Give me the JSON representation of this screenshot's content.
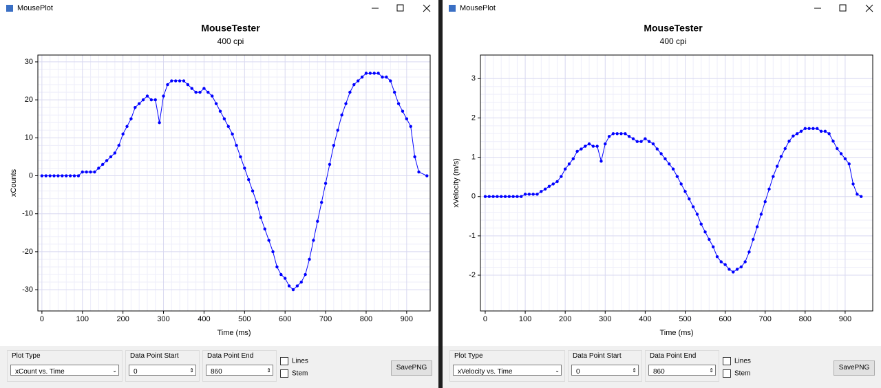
{
  "windows": [
    {
      "title": "MousePlot",
      "controls": {
        "plot_type_label": "Plot Type",
        "plot_type_value": "xCount vs. Time",
        "start_label": "Data Point Start",
        "start_value": "0",
        "end_label": "Data Point End",
        "end_value": "860",
        "lines_label": "Lines",
        "stem_label": "Stem",
        "button": "SavePNG"
      }
    },
    {
      "title": "MousePlot",
      "controls": {
        "plot_type_label": "Plot Type",
        "plot_type_value": "xVelocity vs. Time",
        "start_label": "Data Point Start",
        "start_value": "0",
        "end_label": "Data Point End",
        "end_value": "860",
        "lines_label": "Lines",
        "stem_label": "Stem",
        "button": "SavePNG"
      }
    }
  ],
  "chart_data": [
    {
      "type": "scatter",
      "title": "MouseTester",
      "subtitle": "400 cpi",
      "x_label": "Time (ms)",
      "y_label": "xCounts",
      "x": [
        0,
        10,
        20,
        30,
        40,
        50,
        60,
        70,
        80,
        90,
        100,
        110,
        120,
        130,
        140,
        150,
        160,
        170,
        180,
        190,
        200,
        210,
        220,
        230,
        240,
        250,
        260,
        270,
        280,
        290,
        300,
        310,
        320,
        330,
        340,
        350,
        360,
        370,
        380,
        390,
        400,
        410,
        420,
        430,
        440,
        450,
        460,
        470,
        480,
        490,
        500,
        510,
        520,
        530,
        540,
        550,
        560,
        570,
        580,
        590,
        600,
        610,
        620,
        630,
        640,
        650,
        660,
        670,
        680,
        690,
        700,
        710,
        720,
        730,
        740,
        750,
        760,
        770,
        780,
        790,
        800,
        810,
        820,
        830,
        840,
        850,
        860,
        870,
        880,
        890,
        900,
        910,
        920,
        930,
        950
      ],
      "series": [
        {
          "color": "#0000ff",
          "values": [
            0,
            0,
            0,
            0,
            0,
            0,
            0,
            0,
            0,
            0,
            1,
            1,
            1,
            1,
            2,
            3,
            4,
            5,
            6,
            8,
            11,
            13,
            15,
            18,
            19,
            20,
            21,
            20,
            20,
            14,
            21,
            24,
            25,
            25,
            25,
            25,
            24,
            23,
            22,
            22,
            23,
            22,
            21,
            19,
            17,
            15,
            13,
            11,
            8,
            5,
            2,
            -1,
            -4,
            -7,
            -11,
            -14,
            -17,
            -20,
            -24,
            -26,
            -27,
            -29,
            -30,
            -29,
            -28,
            -26,
            -22,
            -17,
            -12,
            -7,
            -2,
            3,
            8,
            12,
            16,
            19,
            22,
            24,
            25,
            26,
            27,
            27,
            27,
            27,
            26,
            26,
            25,
            22,
            19,
            17,
            15,
            13,
            5,
            1,
            0
          ]
        }
      ],
      "xlim": [
        -10,
        958
      ],
      "ylim": [
        -35.6,
        31.8
      ],
      "xticks": [
        0,
        100,
        200,
        300,
        400,
        500,
        600,
        700,
        800,
        900
      ],
      "yticks": [
        -30,
        -20,
        -10,
        0,
        10,
        20,
        30
      ],
      "grid": true
    },
    {
      "type": "scatter",
      "title": "MouseTester",
      "subtitle": "400 cpi",
      "x_label": "Time (ms)",
      "y_label": "xVelocity (m/s)",
      "x": [
        0,
        10,
        20,
        30,
        40,
        50,
        60,
        70,
        80,
        90,
        100,
        110,
        120,
        130,
        140,
        150,
        160,
        170,
        180,
        190,
        200,
        210,
        220,
        230,
        240,
        250,
        260,
        270,
        280,
        290,
        300,
        310,
        320,
        330,
        340,
        350,
        360,
        370,
        380,
        390,
        400,
        410,
        420,
        430,
        440,
        450,
        460,
        470,
        480,
        490,
        500,
        510,
        520,
        530,
        540,
        550,
        560,
        570,
        580,
        590,
        600,
        610,
        620,
        630,
        640,
        650,
        660,
        670,
        680,
        690,
        700,
        710,
        720,
        730,
        740,
        750,
        760,
        770,
        780,
        790,
        800,
        810,
        820,
        830,
        840,
        850,
        860,
        870,
        880,
        890,
        900,
        910,
        920,
        930,
        940
      ],
      "series": [
        {
          "color": "#0000ff",
          "values": [
            0,
            0,
            0,
            0,
            0,
            0,
            0,
            0,
            0,
            0,
            0.06,
            0.06,
            0.06,
            0.06,
            0.13,
            0.19,
            0.26,
            0.32,
            0.38,
            0.51,
            0.7,
            0.83,
            0.96,
            1.15,
            1.21,
            1.28,
            1.34,
            1.28,
            1.28,
            0.9,
            1.34,
            1.53,
            1.6,
            1.6,
            1.6,
            1.6,
            1.53,
            1.47,
            1.4,
            1.4,
            1.47,
            1.4,
            1.34,
            1.21,
            1.09,
            0.96,
            0.83,
            0.7,
            0.51,
            0.32,
            0.13,
            -0.06,
            -0.26,
            -0.45,
            -0.7,
            -0.9,
            -1.09,
            -1.28,
            -1.53,
            -1.66,
            -1.73,
            -1.85,
            -1.92,
            -1.85,
            -1.79,
            -1.66,
            -1.41,
            -1.09,
            -0.77,
            -0.45,
            -0.13,
            0.19,
            0.51,
            0.77,
            1.02,
            1.22,
            1.41,
            1.54,
            1.6,
            1.66,
            1.73,
            1.73,
            1.73,
            1.73,
            1.66,
            1.66,
            1.6,
            1.41,
            1.22,
            1.09,
            0.96,
            0.83,
            0.32,
            0.06,
            0
          ]
        }
      ],
      "xlim": [
        -12,
        969
      ],
      "ylim": [
        -2.91,
        3.6
      ],
      "xticks": [
        0,
        100,
        200,
        300,
        400,
        500,
        600,
        700,
        800,
        900
      ],
      "yticks": [
        -2,
        -1,
        0,
        1,
        2,
        3
      ],
      "grid": true
    }
  ]
}
